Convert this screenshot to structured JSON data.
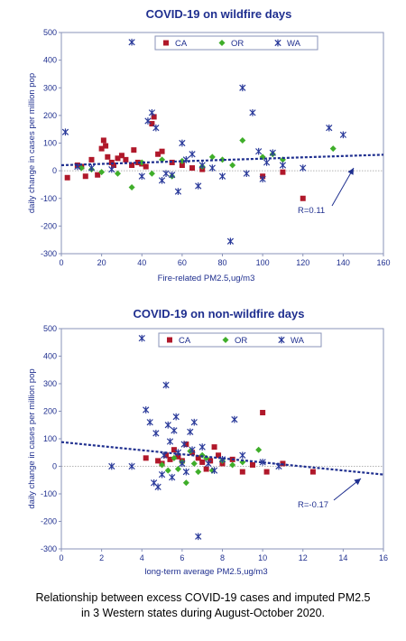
{
  "caption": {
    "line1": "Relationship between excess COVID-19 cases and imputed PM2.5",
    "line2": "in 3 Western states during August-October 2020."
  },
  "colors": {
    "CA": "#b0182a",
    "OR": "#3fae2a",
    "WA": "#2a3a9a",
    "text": "#1f2f8f",
    "trend": "#1f2f8f"
  },
  "chart_data": [
    {
      "type": "scatter",
      "title": "COVID-19 on wildfire days",
      "xlabel": "Fire-related PM2.5,ug/m3",
      "ylabel": "daily change in cases per million pop",
      "xlim": [
        0,
        160
      ],
      "ylim": [
        -300,
        500
      ],
      "xticks": [
        0,
        20,
        40,
        60,
        80,
        100,
        120,
        140,
        160
      ],
      "yticks": [
        -300,
        -200,
        -100,
        0,
        100,
        200,
        300,
        400,
        500
      ],
      "legend": [
        "CA",
        "OR",
        "WA"
      ],
      "annotation": "R=0.11",
      "trend": {
        "x": [
          0,
          160
        ],
        "y": [
          20,
          58
        ]
      },
      "series": [
        {
          "name": "CA",
          "points": [
            [
              3,
              -25
            ],
            [
              8,
              20
            ],
            [
              10,
              15
            ],
            [
              12,
              -20
            ],
            [
              15,
              40
            ],
            [
              18,
              -15
            ],
            [
              20,
              80
            ],
            [
              21,
              110
            ],
            [
              22,
              90
            ],
            [
              23,
              50
            ],
            [
              25,
              30
            ],
            [
              26,
              20
            ],
            [
              28,
              45
            ],
            [
              30,
              55
            ],
            [
              32,
              40
            ],
            [
              35,
              20
            ],
            [
              36,
              75
            ],
            [
              38,
              30
            ],
            [
              40,
              25
            ],
            [
              42,
              15
            ],
            [
              45,
              170
            ],
            [
              46,
              195
            ],
            [
              48,
              60
            ],
            [
              50,
              70
            ],
            [
              55,
              30
            ],
            [
              60,
              20
            ],
            [
              65,
              10
            ],
            [
              70,
              5
            ],
            [
              100,
              -20
            ],
            [
              110,
              -5
            ],
            [
              120,
              -100
            ]
          ]
        },
        {
          "name": "OR",
          "points": [
            [
              10,
              10
            ],
            [
              15,
              5
            ],
            [
              20,
              -5
            ],
            [
              28,
              -10
            ],
            [
              35,
              -60
            ],
            [
              40,
              30
            ],
            [
              45,
              -10
            ],
            [
              50,
              40
            ],
            [
              55,
              -20
            ],
            [
              60,
              35
            ],
            [
              70,
              15
            ],
            [
              75,
              50
            ],
            [
              80,
              40
            ],
            [
              85,
              20
            ],
            [
              90,
              110
            ],
            [
              100,
              50
            ],
            [
              105,
              60
            ],
            [
              110,
              40
            ],
            [
              135,
              80
            ]
          ]
        },
        {
          "name": "WA",
          "points": [
            [
              2,
              140
            ],
            [
              8,
              15
            ],
            [
              15,
              10
            ],
            [
              25,
              5
            ],
            [
              35,
              465
            ],
            [
              40,
              -20
            ],
            [
              43,
              180
            ],
            [
              45,
              210
            ],
            [
              47,
              155
            ],
            [
              50,
              -35
            ],
            [
              52,
              -10
            ],
            [
              55,
              -15
            ],
            [
              58,
              -75
            ],
            [
              60,
              100
            ],
            [
              62,
              40
            ],
            [
              65,
              60
            ],
            [
              68,
              -55
            ],
            [
              70,
              20
            ],
            [
              75,
              10
            ],
            [
              80,
              -20
            ],
            [
              84,
              -255
            ],
            [
              90,
              300
            ],
            [
              92,
              -10
            ],
            [
              95,
              210
            ],
            [
              98,
              70
            ],
            [
              100,
              -30
            ],
            [
              102,
              30
            ],
            [
              105,
              65
            ],
            [
              110,
              20
            ],
            [
              120,
              10
            ],
            [
              133,
              155
            ],
            [
              140,
              130
            ]
          ]
        }
      ]
    },
    {
      "type": "scatter",
      "title": "COVID-19 on non-wildfire days",
      "xlabel": "long-term average PM2.5,ug/m3",
      "ylabel": "daily change in cases per million pop",
      "xlim": [
        0,
        16
      ],
      "ylim": [
        -300,
        500
      ],
      "xticks": [
        0,
        2,
        4,
        6,
        8,
        10,
        12,
        14,
        16
      ],
      "yticks": [
        -300,
        -200,
        -100,
        0,
        100,
        200,
        300,
        400,
        500
      ],
      "legend": [
        "CA",
        "OR",
        "WA"
      ],
      "annotation": "R=-0.17",
      "trend": {
        "x": [
          0,
          16
        ],
        "y": [
          88,
          -30
        ]
      },
      "series": [
        {
          "name": "CA",
          "points": [
            [
              4.2,
              30
            ],
            [
              4.8,
              20
            ],
            [
              5.0,
              10
            ],
            [
              5.2,
              40
            ],
            [
              5.4,
              25
            ],
            [
              5.6,
              60
            ],
            [
              5.8,
              35
            ],
            [
              6.0,
              20
            ],
            [
              6.2,
              80
            ],
            [
              6.5,
              50
            ],
            [
              6.8,
              30
            ],
            [
              7.0,
              15
            ],
            [
              7.2,
              -10
            ],
            [
              7.4,
              20
            ],
            [
              7.6,
              70
            ],
            [
              7.8,
              40
            ],
            [
              8.0,
              10
            ],
            [
              8.5,
              25
            ],
            [
              9.0,
              -20
            ],
            [
              9.5,
              5
            ],
            [
              10.0,
              195
            ],
            [
              10.2,
              -20
            ],
            [
              11.0,
              10
            ],
            [
              12.5,
              -20
            ]
          ]
        },
        {
          "name": "OR",
          "points": [
            [
              5.0,
              5
            ],
            [
              5.3,
              -15
            ],
            [
              5.6,
              30
            ],
            [
              5.8,
              -10
            ],
            [
              6.0,
              15
            ],
            [
              6.2,
              -60
            ],
            [
              6.4,
              55
            ],
            [
              6.6,
              10
            ],
            [
              6.8,
              -20
            ],
            [
              7.0,
              40
            ],
            [
              7.2,
              30
            ],
            [
              7.5,
              -15
            ],
            [
              8.0,
              20
            ],
            [
              8.5,
              5
            ],
            [
              9.0,
              15
            ],
            [
              9.8,
              60
            ]
          ]
        },
        {
          "name": "WA",
          "points": [
            [
              2.5,
              0
            ],
            [
              3.5,
              0
            ],
            [
              4.0,
              465
            ],
            [
              4.2,
              205
            ],
            [
              4.4,
              160
            ],
            [
              4.6,
              -60
            ],
            [
              4.7,
              120
            ],
            [
              4.8,
              -75
            ],
            [
              5.0,
              -30
            ],
            [
              5.1,
              40
            ],
            [
              5.2,
              295
            ],
            [
              5.3,
              150
            ],
            [
              5.4,
              90
            ],
            [
              5.5,
              -40
            ],
            [
              5.6,
              130
            ],
            [
              5.7,
              180
            ],
            [
              5.8,
              50
            ],
            [
              6.0,
              10
            ],
            [
              6.1,
              80
            ],
            [
              6.2,
              -20
            ],
            [
              6.4,
              125
            ],
            [
              6.5,
              60
            ],
            [
              6.6,
              160
            ],
            [
              6.8,
              -255
            ],
            [
              7.0,
              70
            ],
            [
              7.3,
              10
            ],
            [
              7.6,
              -15
            ],
            [
              8.0,
              25
            ],
            [
              8.6,
              170
            ],
            [
              9.0,
              40
            ],
            [
              10.0,
              15
            ],
            [
              10.8,
              0
            ]
          ]
        }
      ]
    }
  ]
}
